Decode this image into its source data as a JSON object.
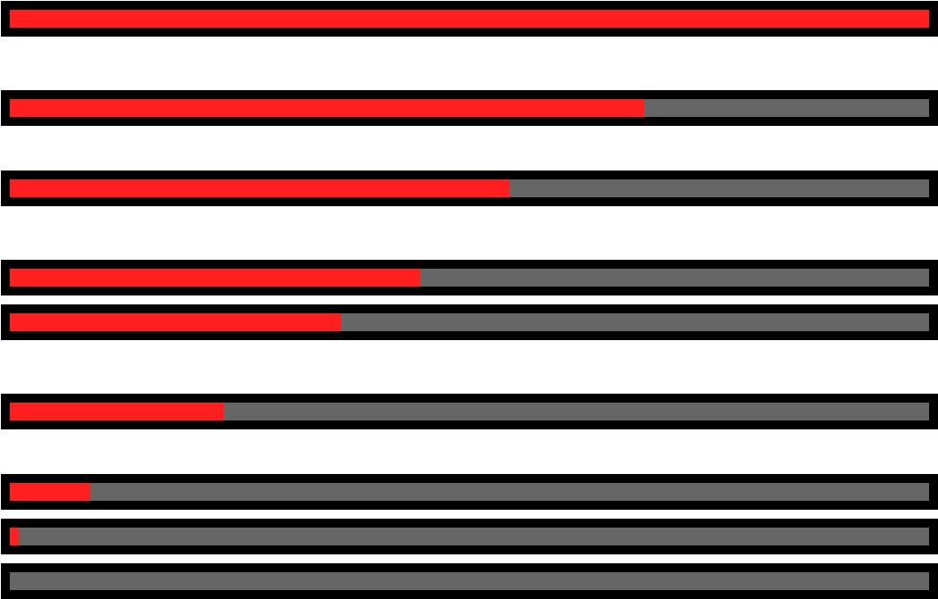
{
  "colors": {
    "background": "#ffffff",
    "frame": "#000000",
    "track": "#666666",
    "fill": "#ff1f1f"
  },
  "progress_bars": [
    {
      "id": "bar-1",
      "progress": 1.0
    },
    {
      "id": "bar-2",
      "progress": 0.69
    },
    {
      "id": "bar-3",
      "progress": 0.544
    },
    {
      "id": "bar-4",
      "progress": 0.447
    },
    {
      "id": "bar-5",
      "progress": 0.36
    },
    {
      "id": "bar-6",
      "progress": 0.233
    },
    {
      "id": "bar-7",
      "progress": 0.087
    },
    {
      "id": "bar-8",
      "progress": 0.01
    },
    {
      "id": "bar-9",
      "progress": 0.0
    }
  ]
}
